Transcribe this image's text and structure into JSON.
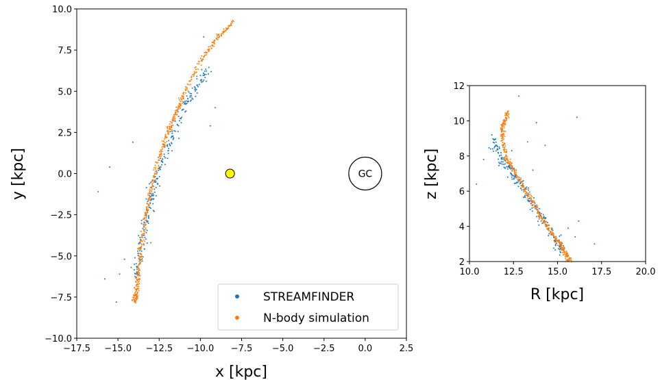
{
  "colors": {
    "streamfinder": "#1f77b4",
    "nbody": "#ff7f0e",
    "sun": "#ffff00",
    "axis": "#000000"
  },
  "chart_data": [
    {
      "type": "scatter",
      "title": "",
      "xlabel": "x [kpc]",
      "ylabel": "y [kpc]",
      "xlim": [
        -17.5,
        2.5
      ],
      "ylim": [
        -10.0,
        10.0
      ],
      "xticks": [
        -17.5,
        -15.0,
        -12.5,
        -10.0,
        -7.5,
        -5.0,
        -2.5,
        0.0,
        2.5
      ],
      "yticks": [
        -10.0,
        -7.5,
        -5.0,
        -2.5,
        0.0,
        2.5,
        5.0,
        7.5,
        10.0
      ],
      "xtick_labels": [
        "−17.5",
        "−15.0",
        "−12.5",
        "−10.0",
        "−7.5",
        "−5.0",
        "−2.5",
        "0.0",
        "2.5"
      ],
      "ytick_labels": [
        "−10.0",
        "−7.5",
        "−5.0",
        "−2.5",
        "0.0",
        "2.5",
        "5.0",
        "7.5",
        "10.0"
      ],
      "grid": false,
      "legend": {
        "position": "lower-right",
        "entries": [
          "STREAMFINDER",
          "N-body simulation"
        ]
      },
      "annotations": [
        {
          "label": "GC",
          "x": 0.0,
          "y": 0.0,
          "shape": "circle"
        },
        {
          "label": "",
          "x": -8.2,
          "y": 0.0,
          "shape": "filled-circle",
          "note": "Sun position marker"
        }
      ],
      "series": [
        {
          "name": "N-body simulation",
          "track_x": [
            -8.0,
            -9.0,
            -10.0,
            -11.0,
            -11.5,
            -12.0,
            -12.5,
            -13.0,
            -13.3,
            -13.6,
            -13.8,
            -13.9,
            -14.0
          ],
          "track_y": [
            9.2,
            8.2,
            6.8,
            4.8,
            3.6,
            2.5,
            1.0,
            -1.0,
            -2.5,
            -4.5,
            -6.2,
            -7.3,
            -7.8
          ]
        },
        {
          "name": "STREAMFINDER",
          "track_x": [
            -9.6,
            -10.2,
            -10.8,
            -11.5,
            -12.0,
            -12.5,
            -13.0,
            -13.3,
            -13.6,
            -13.9
          ],
          "track_y": [
            6.3,
            5.4,
            4.4,
            2.7,
            1.5,
            0.0,
            -1.5,
            -2.8,
            -4.5,
            -6.5
          ],
          "outliers": [
            [
              -16.2,
              -1.1
            ],
            [
              -14.1,
              1.9
            ],
            [
              -15.8,
              -6.4
            ],
            [
              -14.9,
              -6.1
            ],
            [
              -15.1,
              -7.8
            ],
            [
              -9.8,
              8.3
            ],
            [
              -9.1,
              4.0
            ],
            [
              -9.4,
              2.9
            ],
            [
              -14.2,
              -5.7
            ],
            [
              -13.4,
              -3.0
            ],
            [
              -13.0,
              -4.2
            ],
            [
              -12.8,
              -2.3
            ],
            [
              -15.5,
              0.4
            ],
            [
              -14.6,
              -5.2
            ],
            [
              -13.7,
              -4.2
            ]
          ]
        }
      ]
    },
    {
      "type": "scatter",
      "title": "",
      "xlabel": "R [kpc]",
      "ylabel": "z [kpc]",
      "xlim": [
        10.0,
        20.0
      ],
      "ylim": [
        2.0,
        12.0
      ],
      "xticks": [
        10.0,
        12.5,
        15.0,
        17.5,
        20.0
      ],
      "yticks": [
        2,
        4,
        6,
        8,
        10,
        12
      ],
      "xtick_labels": [
        "10.0",
        "12.5",
        "15.0",
        "17.5",
        "20.0"
      ],
      "ytick_labels": [
        "2",
        "4",
        "6",
        "8",
        "10",
        "12"
      ],
      "grid": false,
      "series": [
        {
          "name": "N-body simulation",
          "track_x": [
            12.2,
            11.9,
            11.85,
            12.1,
            12.6,
            13.2,
            13.8,
            14.4,
            15.0,
            15.4,
            15.7
          ],
          "track_y": [
            10.5,
            9.8,
            9.0,
            7.9,
            7.0,
            6.0,
            5.0,
            4.0,
            3.2,
            2.5,
            2.0
          ]
        },
        {
          "name": "STREAMFINDER",
          "track_x": [
            11.4,
            11.6,
            12.0,
            12.5,
            13.0,
            13.5,
            14.0,
            14.5,
            15.0,
            15.3
          ],
          "track_y": [
            9.0,
            8.2,
            7.5,
            6.9,
            6.2,
            5.4,
            4.6,
            3.9,
            3.1,
            2.6
          ],
          "outliers": [
            [
              12.8,
              11.4
            ],
            [
              16.1,
              10.2
            ],
            [
              13.8,
              9.9
            ],
            [
              13.3,
              8.8
            ],
            [
              14.3,
              8.6
            ],
            [
              10.4,
              6.4
            ],
            [
              10.8,
              7.8
            ],
            [
              16.2,
              4.3
            ],
            [
              17.1,
              3.0
            ],
            [
              15.2,
              3.5
            ],
            [
              16.0,
              3.4
            ],
            [
              12.4,
              8.3
            ],
            [
              13.6,
              7.2
            ],
            [
              11.2,
              8.4
            ],
            [
              15.6,
              3.9
            ]
          ]
        }
      ]
    }
  ]
}
